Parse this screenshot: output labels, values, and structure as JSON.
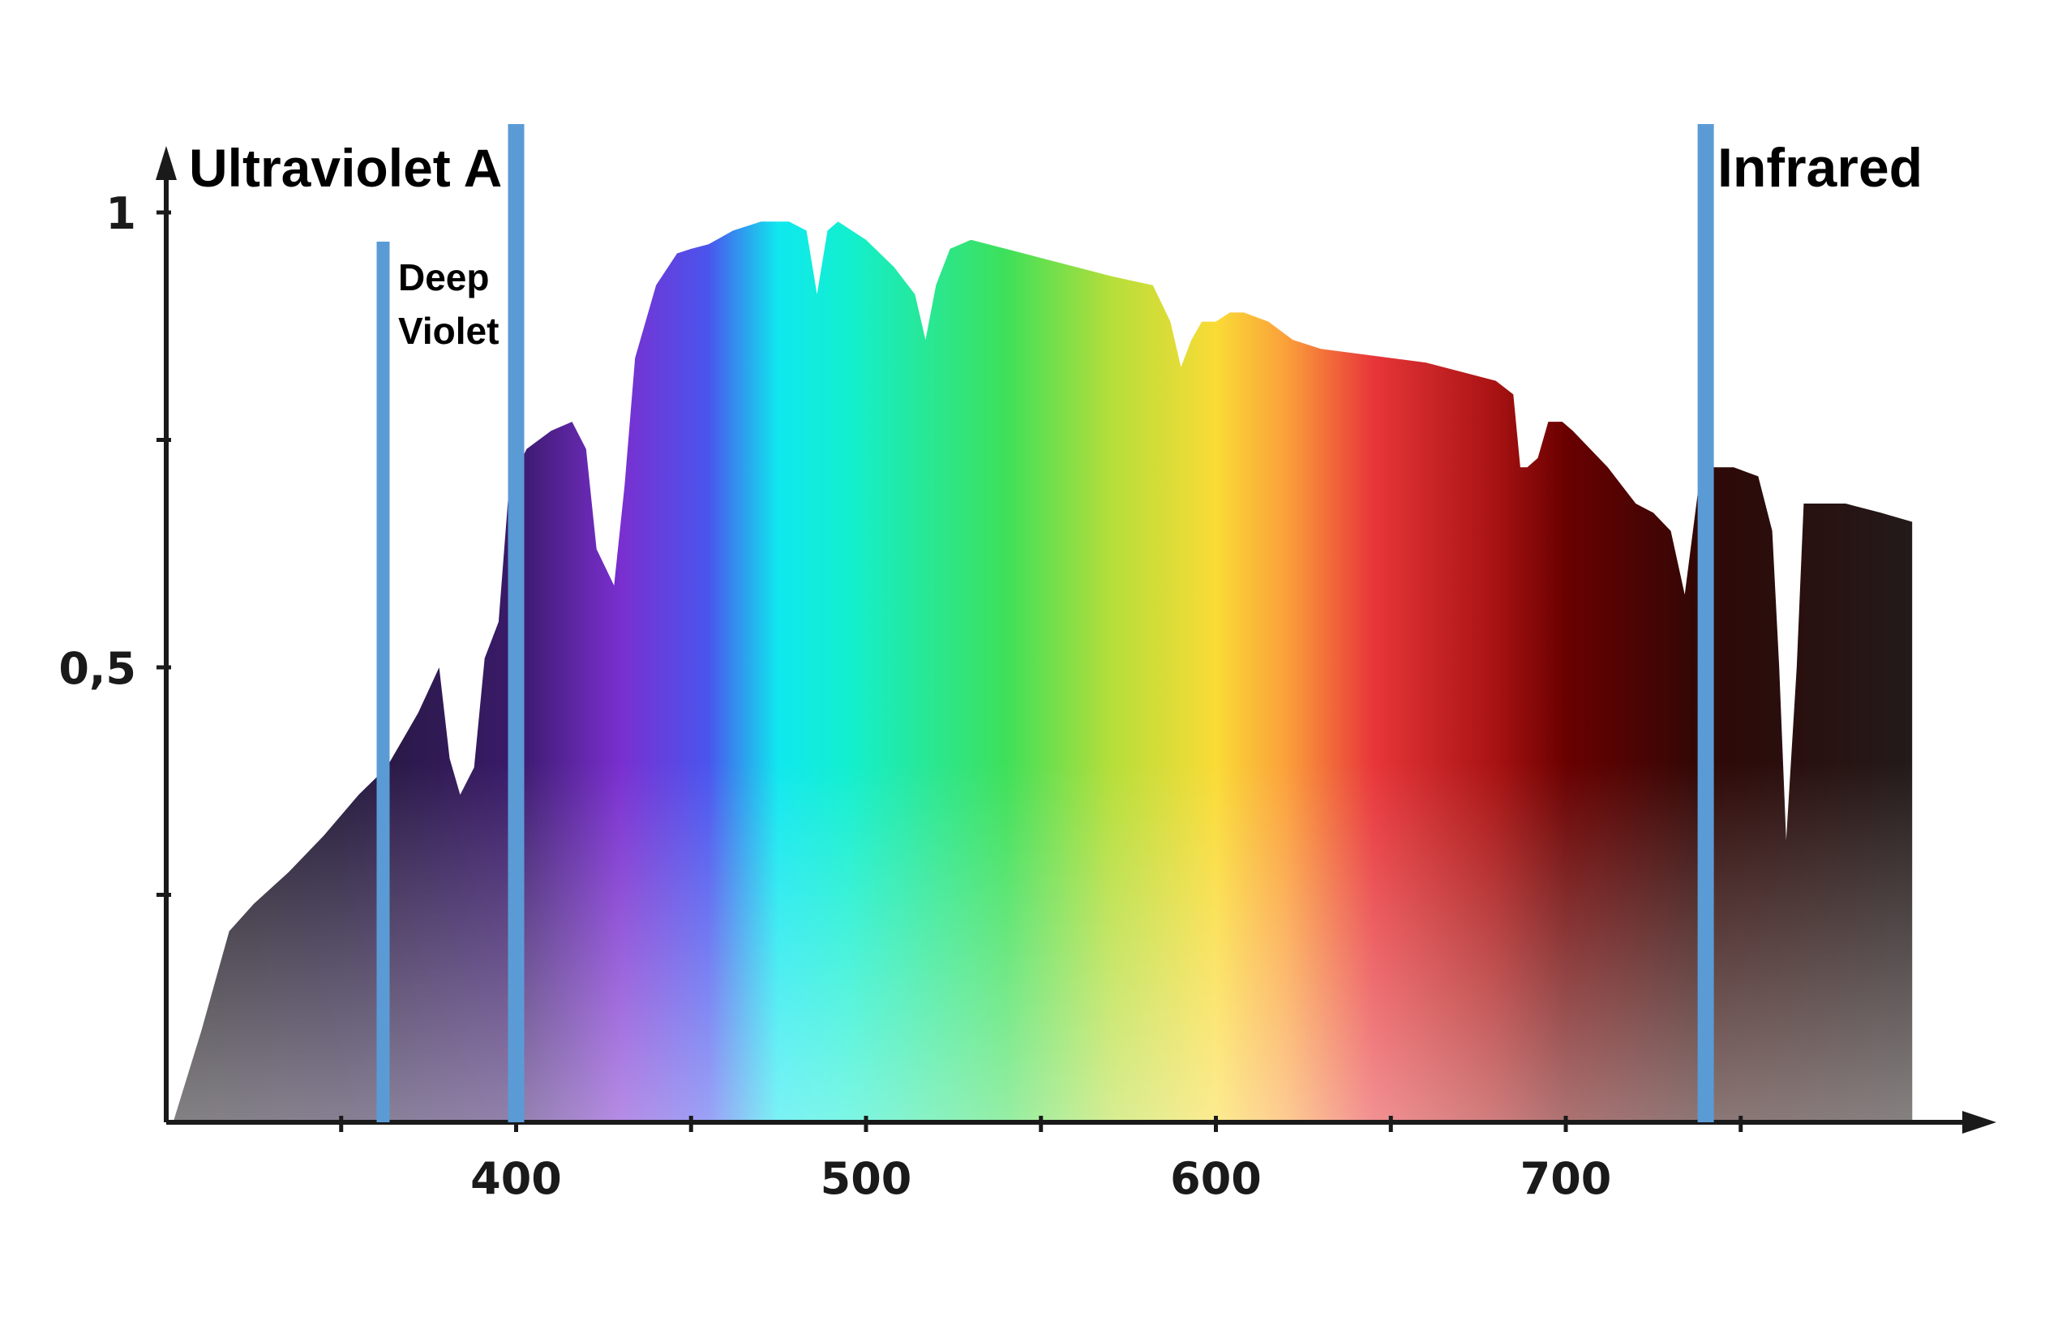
{
  "chart_data": {
    "type": "area",
    "title": "",
    "xlabel": "",
    "ylabel": "",
    "xlim": [
      300,
      800
    ],
    "ylim": [
      0,
      1
    ],
    "x_ticks": [
      350,
      400,
      450,
      500,
      550,
      600,
      650,
      700,
      750
    ],
    "x_tick_labels": [
      "400",
      "500",
      "600",
      "700"
    ],
    "x_tick_label_values": [
      400,
      500,
      600,
      700
    ],
    "y_ticks": [
      0.25,
      0.5,
      0.75,
      1.0
    ],
    "y_tick_labels": [
      "0,5",
      "1"
    ],
    "y_tick_label_values": [
      0.5,
      1.0
    ],
    "grid": false,
    "legend": "none",
    "series": [
      {
        "x": [
          302,
          310,
          318,
          325,
          335,
          345,
          355,
          363,
          372,
          378,
          381,
          384,
          388,
          391,
          395,
          398,
          403,
          410,
          416,
          420,
          423,
          428,
          431,
          434,
          440,
          446,
          450,
          455,
          462,
          470,
          478,
          483,
          486,
          489,
          492,
          500,
          508,
          514,
          517,
          520,
          524,
          530,
          540,
          550,
          560,
          570,
          582,
          587,
          590,
          593,
          596,
          600,
          604,
          608,
          615,
          622,
          630,
          640,
          650,
          660,
          670,
          680,
          685,
          687,
          689,
          692,
          695,
          699,
          702,
          707,
          712,
          716,
          720,
          725,
          730,
          734,
          738,
          741,
          744,
          748,
          755,
          759,
          761,
          763,
          766,
          768,
          772,
          780,
          790,
          799
        ],
        "values": [
          0.0,
          0.1,
          0.21,
          0.24,
          0.275,
          0.315,
          0.36,
          0.39,
          0.45,
          0.5,
          0.4,
          0.36,
          0.39,
          0.51,
          0.55,
          0.7,
          0.74,
          0.76,
          0.77,
          0.74,
          0.63,
          0.59,
          0.7,
          0.84,
          0.92,
          0.955,
          0.96,
          0.965,
          0.98,
          0.99,
          0.99,
          0.98,
          0.91,
          0.98,
          0.99,
          0.97,
          0.94,
          0.91,
          0.86,
          0.92,
          0.96,
          0.97,
          0.96,
          0.95,
          0.94,
          0.93,
          0.92,
          0.88,
          0.83,
          0.86,
          0.88,
          0.88,
          0.89,
          0.89,
          0.88,
          0.86,
          0.85,
          0.845,
          0.84,
          0.835,
          0.825,
          0.815,
          0.8,
          0.72,
          0.72,
          0.73,
          0.77,
          0.77,
          0.76,
          0.74,
          0.72,
          0.7,
          0.68,
          0.67,
          0.65,
          0.58,
          0.7,
          0.72,
          0.72,
          0.72,
          0.71,
          0.65,
          0.5,
          0.31,
          0.5,
          0.68,
          0.68,
          0.68,
          0.67,
          0.66
        ],
        "fill_gradient": [
          {
            "nm": 300,
            "color": "#1f1b1e"
          },
          {
            "nm": 350,
            "color": "#24193a"
          },
          {
            "nm": 400,
            "color": "#3a1a6a"
          },
          {
            "nm": 430,
            "color": "#7a2fd0"
          },
          {
            "nm": 455,
            "color": "#4a55ee"
          },
          {
            "nm": 475,
            "color": "#10e8ee"
          },
          {
            "nm": 495,
            "color": "#12efcf"
          },
          {
            "nm": 540,
            "color": "#3ee05a"
          },
          {
            "nm": 570,
            "color": "#b5de3a"
          },
          {
            "nm": 600,
            "color": "#fadb36"
          },
          {
            "nm": 620,
            "color": "#fba03a"
          },
          {
            "nm": 645,
            "color": "#e8363a"
          },
          {
            "nm": 680,
            "color": "#a81212"
          },
          {
            "nm": 700,
            "color": "#6a0000"
          },
          {
            "nm": 740,
            "color": "#2e0806"
          },
          {
            "nm": 800,
            "color": "#231a1a"
          }
        ]
      }
    ],
    "markers": [
      {
        "x": 362,
        "label": "Deep Violet",
        "label_lines": [
          "Deep",
          "Violet"
        ]
      },
      {
        "x": 400,
        "label": "Ultraviolet A"
      },
      {
        "x": 740,
        "label": "Infrared"
      }
    ],
    "marker_color": "#5b9bd5"
  }
}
